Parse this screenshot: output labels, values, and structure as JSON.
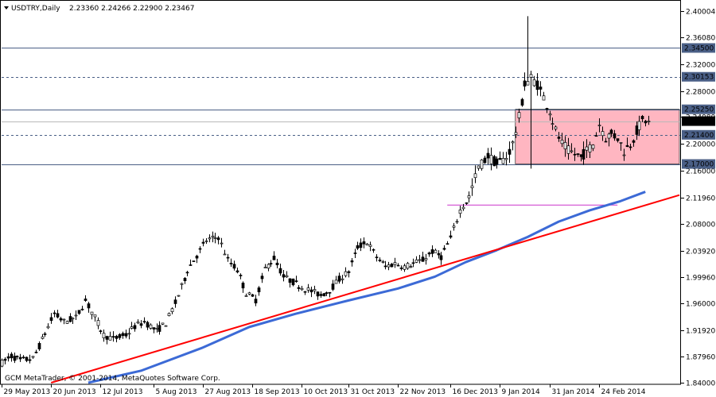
{
  "header": {
    "symbol": "USDTRY,Daily",
    "ohlc": "2.23360 2.24266 2.22900 2.23467"
  },
  "footer": {
    "copyright": "GCM MetaTrader, © 2001-2014, MetaQuotes Software Corp."
  },
  "chart_data": {
    "type": "candlestick",
    "ylim": [
      1.84,
      2.415
    ],
    "x_range": [
      0,
      219
    ],
    "y_ticks": [
      "2.40004",
      "2.36080",
      "2.32000",
      "2.28000",
      "2.24080",
      "2.20000",
      "2.16000",
      "2.11960",
      "2.08000",
      "2.03920",
      "1.99960",
      "1.96000",
      "1.91920",
      "1.87960",
      "1.84000"
    ],
    "x_ticks": [
      {
        "label": "29 May 2013",
        "x": 0
      },
      {
        "label": "20 Jun 2013",
        "x": 16
      },
      {
        "label": "12 Jul 2013",
        "x": 32
      },
      {
        "label": "5 Aug 2013",
        "x": 49
      },
      {
        "label": "27 Aug 2013",
        "x": 65
      },
      {
        "label": "18 Sep 2013",
        "x": 81
      },
      {
        "label": "10 Oct 2013",
        "x": 97
      },
      {
        "label": "31 Oct 2013",
        "x": 112
      },
      {
        "label": "22 Nov 2013",
        "x": 128
      },
      {
        "label": "16 Dec 2013",
        "x": 145
      },
      {
        "label": "9 Jan 2014",
        "x": 161
      },
      {
        "label": "31 Jan 2014",
        "x": 177
      },
      {
        "label": "24 Feb 2014",
        "x": 193
      }
    ],
    "levels": [
      {
        "value": 2.345,
        "label": "2.34500",
        "style": "solid"
      },
      {
        "value": 2.30153,
        "label": "2.30153",
        "style": "dashed"
      },
      {
        "value": 2.2525,
        "label": "2.25250",
        "style": "solid"
      },
      {
        "value": 2.214,
        "label": "2.21400",
        "style": "dashed"
      },
      {
        "value": 2.17,
        "label": "2.17000",
        "style": "solid"
      }
    ],
    "current_price": {
      "value": 2.23467,
      "label": "2.23467"
    },
    "zone": {
      "x_start": 166,
      "x_end": 219,
      "y_low": 2.17,
      "y_high": 2.2525,
      "color": "#ffb6c1"
    },
    "magenta_line": {
      "x_start": 144,
      "x_end": 199,
      "value": 2.108
    },
    "trendline": {
      "x0": 16,
      "y0": 1.84,
      "x1": 219,
      "y1": 2.1231,
      "color": "#ff0000"
    },
    "moving_average": {
      "color": "#3c6ad6",
      "points": [
        [
          28,
          1.84
        ],
        [
          45,
          1.858
        ],
        [
          65,
          1.893
        ],
        [
          80,
          1.924
        ],
        [
          95,
          1.944
        ],
        [
          112,
          1.964
        ],
        [
          128,
          1.982
        ],
        [
          140,
          2.0
        ],
        [
          150,
          2.022
        ],
        [
          160,
          2.04
        ],
        [
          170,
          2.06
        ],
        [
          180,
          2.083
        ],
        [
          190,
          2.1
        ],
        [
          200,
          2.114
        ],
        [
          208,
          2.128
        ]
      ]
    },
    "price_path": [
      [
        0,
        1.87
      ],
      [
        3,
        1.88
      ],
      [
        6,
        1.874
      ],
      [
        10,
        1.876
      ],
      [
        13,
        1.905
      ],
      [
        17,
        1.944
      ],
      [
        20,
        1.932
      ],
      [
        24,
        1.938
      ],
      [
        27,
        1.964
      ],
      [
        30,
        1.938
      ],
      [
        33,
        1.912
      ],
      [
        36,
        1.906
      ],
      [
        40,
        1.912
      ],
      [
        43,
        1.925
      ],
      [
        46,
        1.932
      ],
      [
        50,
        1.918
      ],
      [
        53,
        1.93
      ],
      [
        56,
        1.96
      ],
      [
        60,
        2.01
      ],
      [
        63,
        2.032
      ],
      [
        66,
        2.055
      ],
      [
        70,
        2.06
      ],
      [
        73,
        2.025
      ],
      [
        76,
        2.01
      ],
      [
        79,
        1.975
      ],
      [
        82,
        1.965
      ],
      [
        85,
        2.012
      ],
      [
        88,
        2.028
      ],
      [
        91,
        2.0
      ],
      [
        94,
        1.992
      ],
      [
        97,
        1.984
      ],
      [
        100,
        1.978
      ],
      [
        103,
        1.972
      ],
      [
        106,
        1.98
      ],
      [
        109,
        1.996
      ],
      [
        112,
        2.008
      ],
      [
        115,
        2.045
      ],
      [
        118,
        2.052
      ],
      [
        121,
        2.03
      ],
      [
        124,
        2.015
      ],
      [
        127,
        2.02
      ],
      [
        130,
        2.015
      ],
      [
        133,
        2.02
      ],
      [
        136,
        2.025
      ],
      [
        139,
        2.038
      ],
      [
        142,
        2.03
      ],
      [
        145,
        2.058
      ],
      [
        148,
        2.1
      ],
      [
        151,
        2.12
      ],
      [
        154,
        2.165
      ],
      [
        157,
        2.182
      ],
      [
        160,
        2.17
      ],
      [
        163,
        2.18
      ],
      [
        165,
        2.2
      ],
      [
        167,
        2.24
      ],
      [
        169,
        2.29
      ],
      [
        171,
        2.3
      ],
      [
        173,
        2.29
      ],
      [
        175,
        2.27
      ],
      [
        177,
        2.25
      ],
      [
        179,
        2.22
      ],
      [
        181,
        2.2
      ],
      [
        183,
        2.19
      ],
      [
        185,
        2.185
      ],
      [
        187,
        2.18
      ],
      [
        189,
        2.19
      ],
      [
        191,
        2.2
      ],
      [
        193,
        2.23
      ],
      [
        195,
        2.21
      ],
      [
        197,
        2.215
      ],
      [
        199,
        2.21
      ],
      [
        201,
        2.19
      ],
      [
        203,
        2.2
      ],
      [
        205,
        2.22
      ],
      [
        207,
        2.235
      ],
      [
        209,
        2.236
      ]
    ]
  }
}
